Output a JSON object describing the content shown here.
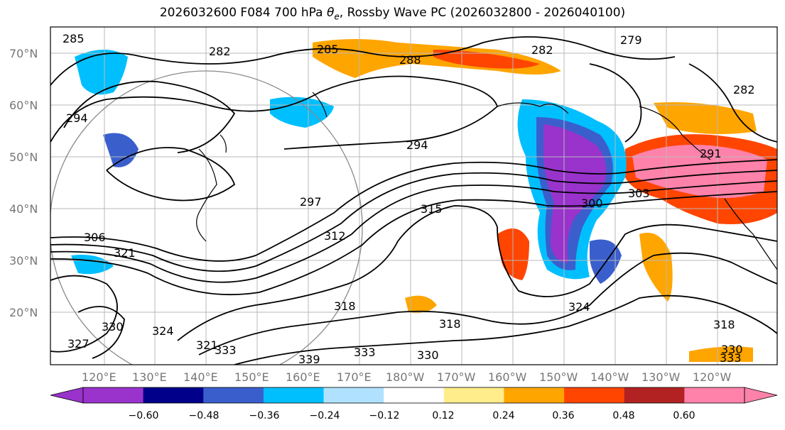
{
  "title": {
    "prefix": "2026032600 F084 700 hPa ",
    "theta": "θ",
    "theta_sub": "e",
    "suffix": ", Rossby Wave PC (2026032800 - 2026040100)"
  },
  "axes": {
    "lat_labels": [
      "70°N",
      "60°N",
      "50°N",
      "40°N",
      "30°N",
      "20°N"
    ],
    "lon_labels": [
      "120°E",
      "130°E",
      "140°E",
      "150°E",
      "160°E",
      "170°E",
      "180°W",
      "170°W",
      "160°W",
      "150°W",
      "140°W",
      "130°W",
      "120°W"
    ]
  },
  "colorbar": {
    "ticks": [
      "−0.60",
      "−0.48",
      "−0.36",
      "−0.24",
      "−0.12",
      "0.12",
      "0.24",
      "0.36",
      "0.48",
      "0.60"
    ],
    "colors": [
      "#9933cc",
      "#00008b",
      "#3a5fcd",
      "#00bfff",
      "#b0e2ff",
      "#ffffff",
      "#ffec8b",
      "#ffa500",
      "#ff4500",
      "#b22222",
      "#ff82ab"
    ]
  },
  "contour_labels": [
    "285",
    "282",
    "285",
    "288",
    "282",
    "279",
    "282",
    "294",
    "294",
    "297",
    "315",
    "300",
    "303",
    "291",
    "306",
    "321",
    "312",
    "318",
    "318",
    "324",
    "327",
    "330",
    "321",
    "333",
    "339",
    "333",
    "330",
    "324",
    "318",
    "330",
    "333"
  ]
}
